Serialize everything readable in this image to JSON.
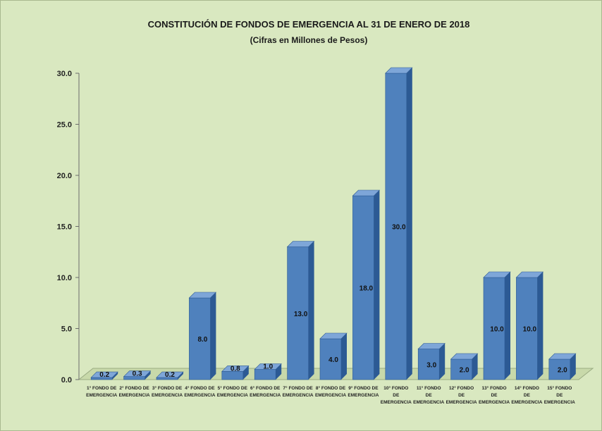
{
  "chart_data": {
    "type": "bar",
    "title": "CONSTITUCIÓN DE FONDOS DE EMERGENCIA AL 31 DE ENERO DE 2018",
    "subtitle": "(Cifras en Millones de Pesos)",
    "categories": [
      [
        "1° FONDO DE",
        "EMERGENCIA"
      ],
      [
        "2° FONDO DE",
        "EMERGENCIA"
      ],
      [
        "3° FONDO DE",
        "EMERGENCIA"
      ],
      [
        "4° FONDO DE",
        "EMERGENCIA"
      ],
      [
        "5° FONDO DE",
        "EMERGENCIA"
      ],
      [
        "6° FONDO DE",
        "EMERGENCIA"
      ],
      [
        "7° FONDO DE",
        "EMERGENCIA"
      ],
      [
        "8° FONDO DE",
        "EMERGENCIA"
      ],
      [
        "9° FONDO DE",
        "EMERGENCIA"
      ],
      [
        "10° FONDO",
        "DE",
        "EMERGENCIA"
      ],
      [
        "11° FONDO",
        "DE",
        "EMERGENCIA"
      ],
      [
        "12° FONDO",
        "DE",
        "EMERGENCIA"
      ],
      [
        "13° FONDO",
        "DE",
        "EMERGENCIA"
      ],
      [
        "14° FONDO",
        "DE",
        "EMERGENCIA"
      ],
      [
        "15° FONDO",
        "DE",
        "EMERGENCIA"
      ]
    ],
    "values": [
      0.2,
      0.3,
      0.2,
      8.0,
      0.8,
      1.0,
      13.0,
      4.0,
      18.0,
      30.0,
      3.0,
      2.0,
      10.0,
      10.0,
      2.0
    ],
    "data_labels": [
      "0.2",
      "0.3",
      "0.2",
      "8.0",
      "0.8",
      "1.0",
      "13.0",
      "4.0",
      "18.0",
      "30.0",
      "3.0",
      "2.0",
      "10.0",
      "10.0",
      "2.0"
    ],
    "yticks": [
      "0.0",
      "5.0",
      "10.0",
      "15.0",
      "20.0",
      "25.0",
      "30.0"
    ],
    "ylim": [
      0,
      30
    ],
    "xlabel": "",
    "ylabel": "",
    "grid": false,
    "legend": "none",
    "bar_color": "#4f81bd",
    "bar_dark": "#2c5a94",
    "bar_light": "#7ea6d8",
    "background": "#d9e8c0"
  }
}
